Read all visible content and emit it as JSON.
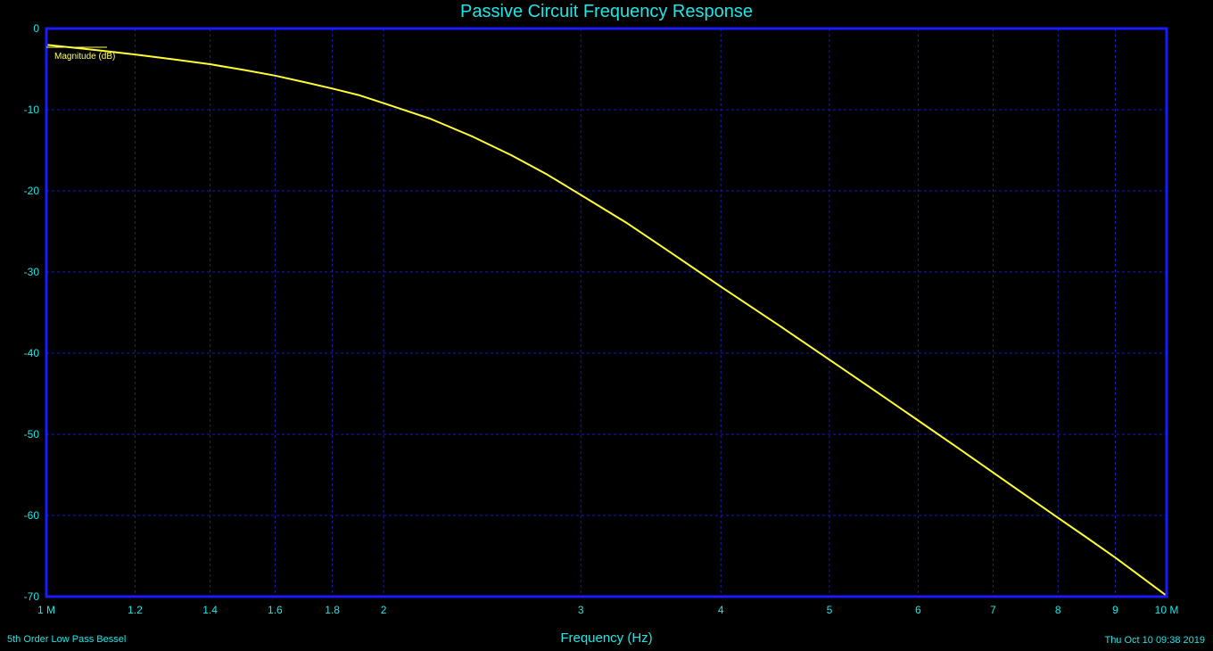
{
  "chart_data": {
    "type": "line",
    "title": "Passive Circuit Frequency Response",
    "xlabel": "Frequency (Hz)",
    "ylabel": "",
    "x_scale": "log",
    "xlim": [
      1000000,
      10000000
    ],
    "ylim": [
      -70,
      0
    ],
    "grid": true,
    "x_ticks": [
      {
        "value": 1000000,
        "label": "1 M"
      },
      {
        "value": 1200000,
        "label": "1.2"
      },
      {
        "value": 1400000,
        "label": "1.4"
      },
      {
        "value": 1600000,
        "label": "1.6"
      },
      {
        "value": 1800000,
        "label": "1.8"
      },
      {
        "value": 2000000,
        "label": "2"
      },
      {
        "value": 3000000,
        "label": "3"
      },
      {
        "value": 4000000,
        "label": "4"
      },
      {
        "value": 5000000,
        "label": "5"
      },
      {
        "value": 6000000,
        "label": "6"
      },
      {
        "value": 7000000,
        "label": "7"
      },
      {
        "value": 8000000,
        "label": "8"
      },
      {
        "value": 9000000,
        "label": "9"
      },
      {
        "value": 10000000,
        "label": "10 M"
      }
    ],
    "y_ticks": [
      {
        "value": 0,
        "label": "0"
      },
      {
        "value": -10,
        "label": "-10"
      },
      {
        "value": -20,
        "label": "-20"
      },
      {
        "value": -30,
        "label": "-30"
      },
      {
        "value": -40,
        "label": "-40"
      },
      {
        "value": -50,
        "label": "-50"
      },
      {
        "value": -60,
        "label": "-60"
      },
      {
        "value": -70,
        "label": "-70"
      }
    ],
    "series": [
      {
        "name": "Magnitude (dB)",
        "color": "#ffff33",
        "x": [
          1000000,
          1100000,
          1200000,
          1300000,
          1400000,
          1500000,
          1600000,
          1700000,
          1800000,
          1900000,
          2000000,
          2200000,
          2400000,
          2600000,
          2800000,
          3000000,
          3300000,
          3600000,
          4000000,
          4500000,
          5000000,
          5500000,
          6000000,
          6500000,
          7000000,
          7500000,
          8000000,
          8500000,
          9000000,
          9500000,
          10000000
        ],
        "y": [
          -2.0,
          -2.6,
          -3.2,
          -3.8,
          -4.4,
          -5.1,
          -5.8,
          -6.6,
          -7.4,
          -8.2,
          -9.2,
          -11.1,
          -13.3,
          -15.6,
          -18.0,
          -20.5,
          -24.0,
          -27.5,
          -31.8,
          -36.5,
          -40.8,
          -44.7,
          -48.3,
          -51.6,
          -54.7,
          -57.6,
          -60.3,
          -62.8,
          -65.2,
          -67.6,
          -69.9
        ]
      }
    ]
  },
  "footer": {
    "left_note": "5th Order Low Pass Bessel",
    "timestamp": "Thu Oct 10 09:38 2019"
  },
  "colors": {
    "background": "#000000",
    "frame": "#1a1aff",
    "grid": "#1a1ab0",
    "text": "#1ee6e6",
    "trace": "#ffff33"
  }
}
